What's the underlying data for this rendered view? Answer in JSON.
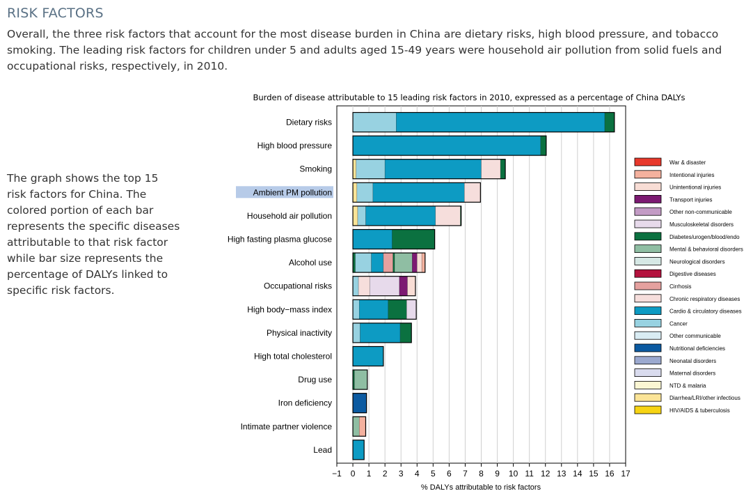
{
  "page": {
    "title": "RISK FACTORS",
    "intro": "Overall, the three risk factors that account for the most disease burden in China are dietary risks, high blood pressure, and tobacco smoking. The leading risk factors for children under 5 and adults aged 15-49 years were household air pollution from solid fuels and occupational risks, respectively, in 2010.",
    "side_note": "The graph shows the top 15 risk factors for China. The colored portion of each bar represents the specific diseases attributable to that risk factor while bar size represents the percentage of DALYs linked to specific risk factors."
  },
  "chart_data": {
    "type": "bar",
    "orientation": "horizontal",
    "stacked": true,
    "title": "Burden of disease attributable to 15 leading risk factors in 2010, expressed as a percentage of China DALYs",
    "xlabel": "% DALYs attributable to risk factors",
    "ylabel": "",
    "xlim": [
      -1,
      17
    ],
    "xticks": [
      -1,
      0,
      1,
      2,
      3,
      4,
      5,
      6,
      7,
      8,
      9,
      10,
      11,
      12,
      13,
      14,
      15,
      16,
      17
    ],
    "grid": "vertical",
    "highlighted_category": "Ambient PM pollution",
    "legend_placement": "right",
    "legend": [
      {
        "name": "War & disaster",
        "color": "#e8392c"
      },
      {
        "name": "Intentional injuries",
        "color": "#f4b19e"
      },
      {
        "name": "Unintentional injuries",
        "color": "#f8ddd5"
      },
      {
        "name": "Transport injuries",
        "color": "#7c1a72"
      },
      {
        "name": "Other non-communicable",
        "color": "#c39bc5"
      },
      {
        "name": "Musculoskeletal disorders",
        "color": "#e7daeb"
      },
      {
        "name": "Diabetes/urogen/blood/endo",
        "color": "#0b7140"
      },
      {
        "name": "Mental & behavioral disorders",
        "color": "#8fbea3"
      },
      {
        "name": "Neurological disorders",
        "color": "#d6e8e5"
      },
      {
        "name": "Digestive diseases",
        "color": "#b4123e"
      },
      {
        "name": "Cirrhosis",
        "color": "#e5a19f"
      },
      {
        "name": "Chronic respiratory diseases",
        "color": "#f6dedc"
      },
      {
        "name": "Cardio & circulatory diseases",
        "color": "#0d9bc3"
      },
      {
        "name": "Cancer",
        "color": "#98d2e1"
      },
      {
        "name": "Other communicable",
        "color": "#d9ecf3"
      },
      {
        "name": "Nutritional deficiencies",
        "color": "#0b5aa1"
      },
      {
        "name": "Neonatal disorders",
        "color": "#9ba9cf"
      },
      {
        "name": "Maternal disorders",
        "color": "#d9dbee"
      },
      {
        "name": "NTD & malaria",
        "color": "#fbf6d3"
      },
      {
        "name": "Diarrhea/LRI/other infectious",
        "color": "#fbe497"
      },
      {
        "name": "HIV/AIDS & tuberculosis",
        "color": "#f7d414"
      }
    ],
    "categories": [
      "Dietary risks",
      "High blood pressure",
      "Smoking",
      "Ambient PM pollution",
      "Household air pollution",
      "High fasting plasma glucose",
      "Alcohol use",
      "Occupational risks",
      "High body−mass index",
      "Physical inactivity",
      "High total cholesterol",
      "Drug use",
      "Iron deficiency",
      "Intimate partner violence",
      "Lead"
    ],
    "bars": [
      {
        "category": "Dietary risks",
        "segments": [
          {
            "cause": "Cancer",
            "value": 2.7
          },
          {
            "cause": "Cardio & circulatory diseases",
            "value": 13.0
          },
          {
            "cause": "Diabetes/urogen/blood/endo",
            "value": 0.6
          }
        ]
      },
      {
        "category": "High blood pressure",
        "segments": [
          {
            "cause": "Cardio & circulatory diseases",
            "value": 11.7
          },
          {
            "cause": "Diabetes/urogen/blood/endo",
            "value": 0.35
          }
        ]
      },
      {
        "category": "Smoking",
        "segments": [
          {
            "cause": "Diarrhea/LRI/other infectious",
            "value": 0.2
          },
          {
            "cause": "Cancer",
            "value": 1.8
          },
          {
            "cause": "Cardio & circulatory diseases",
            "value": 6.0
          },
          {
            "cause": "Chronic respiratory diseases",
            "value": 1.2
          },
          {
            "cause": "Diabetes/urogen/blood/endo",
            "value": 0.3
          }
        ]
      },
      {
        "category": "Ambient PM pollution",
        "segments": [
          {
            "cause": "Diarrhea/LRI/other infectious",
            "value": 0.25
          },
          {
            "cause": "Cancer",
            "value": 1.0
          },
          {
            "cause": "Cardio & circulatory diseases",
            "value": 5.7
          },
          {
            "cause": "Chronic respiratory diseases",
            "value": 1.0
          }
        ]
      },
      {
        "category": "Household air pollution",
        "segments": [
          {
            "cause": "Diarrhea/LRI/other infectious",
            "value": 0.3
          },
          {
            "cause": "Cancer",
            "value": 0.5
          },
          {
            "cause": "Cardio & circulatory diseases",
            "value": 4.35
          },
          {
            "cause": "Chronic respiratory diseases",
            "value": 1.55
          },
          {
            "cause": "Diabetes/urogen/blood/endo",
            "value": 0.05
          }
        ]
      },
      {
        "category": "High fasting plasma glucose",
        "segments": [
          {
            "cause": "Cardio & circulatory diseases",
            "value": 2.45
          },
          {
            "cause": "Diabetes/urogen/blood/endo",
            "value": 2.65
          }
        ]
      },
      {
        "category": "Alcohol use",
        "segments": [
          {
            "cause": "Diabetes/urogen/blood/endo",
            "value": 0.15
          },
          {
            "cause": "Cancer",
            "value": 1.0
          },
          {
            "cause": "Cardio & circulatory diseases",
            "value": 0.75
          },
          {
            "cause": "Cirrhosis",
            "value": 0.6
          },
          {
            "cause": "Diabetes/urogen/blood/endo",
            "value": 0.1
          },
          {
            "cause": "Mental & behavioral disorders",
            "value": 1.1
          },
          {
            "cause": "Transport injuries",
            "value": 0.3
          },
          {
            "cause": "Unintentional injuries",
            "value": 0.3
          },
          {
            "cause": "Intentional injuries",
            "value": 0.2
          }
        ]
      },
      {
        "category": "Occupational risks",
        "segments": [
          {
            "cause": "Cancer",
            "value": 0.35
          },
          {
            "cause": "Chronic respiratory diseases",
            "value": 0.7
          },
          {
            "cause": "Musculoskeletal disorders",
            "value": 1.85
          },
          {
            "cause": "Transport injuries",
            "value": 0.5
          },
          {
            "cause": "Unintentional injuries",
            "value": 0.5
          }
        ]
      },
      {
        "category": "High body−mass index",
        "segments": [
          {
            "cause": "Cancer",
            "value": 0.4
          },
          {
            "cause": "Cardio & circulatory diseases",
            "value": 1.8
          },
          {
            "cause": "Diabetes/urogen/blood/endo",
            "value": 1.15
          },
          {
            "cause": "Musculoskeletal disorders",
            "value": 0.6
          }
        ]
      },
      {
        "category": "Physical inactivity",
        "segments": [
          {
            "cause": "Cancer",
            "value": 0.45
          },
          {
            "cause": "Cardio & circulatory diseases",
            "value": 2.5
          },
          {
            "cause": "Diabetes/urogen/blood/endo",
            "value": 0.7
          }
        ]
      },
      {
        "category": "High total cholesterol",
        "segments": [
          {
            "cause": "Cardio & circulatory diseases",
            "value": 1.9
          }
        ]
      },
      {
        "category": "Drug use",
        "segments": [
          {
            "cause": "Diabetes/urogen/blood/endo",
            "value": 0.1
          },
          {
            "cause": "Mental & behavioral disorders",
            "value": 0.8
          }
        ]
      },
      {
        "category": "Iron deficiency",
        "segments": [
          {
            "cause": "Nutritional deficiencies",
            "value": 0.85
          }
        ]
      },
      {
        "category": "Intimate partner violence",
        "segments": [
          {
            "cause": "Mental & behavioral disorders",
            "value": 0.4
          },
          {
            "cause": "Intentional injuries",
            "value": 0.4
          }
        ]
      },
      {
        "category": "Lead",
        "segments": [
          {
            "cause": "Cardio & circulatory diseases",
            "value": 0.7
          }
        ]
      }
    ]
  }
}
